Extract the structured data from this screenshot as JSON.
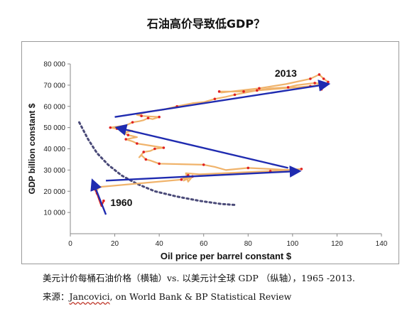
{
  "title": "石油高价导致低GDP？",
  "caption": "美元计价每桶石油价格（横轴）vs. 以美元计全球 GDP （纵轴），1965 -2013.",
  "source": {
    "prefix": "来源：",
    "name": "Jancovici",
    "rest": ", on World Bank & BP Statistical Review"
  },
  "chart_data": {
    "type": "line",
    "title": "",
    "xlabel": "Oil price per barrel constant $",
    "ylabel": "GDP billion constant $",
    "xlim": [
      0,
      140
    ],
    "ylim": [
      0,
      80000
    ],
    "xticks": [
      0,
      20,
      40,
      60,
      80,
      100,
      120,
      140
    ],
    "xtick_labels": [
      "0",
      "20",
      "40",
      "60",
      "80",
      "100",
      "120",
      "140"
    ],
    "yticks": [
      10000,
      20000,
      30000,
      40000,
      50000,
      60000,
      70000,
      80000
    ],
    "ytick_labels": [
      "10 000",
      "20 000",
      "30 000",
      "40 000",
      "50 000",
      "60 000",
      "70 000",
      "80 000"
    ],
    "grid": false,
    "series": [
      {
        "color": "#f0b36b",
        "marker_color": "#e02020",
        "points": [
          [
            15,
            15500
          ],
          [
            14,
            13000
          ],
          [
            13,
            16000
          ],
          [
            12,
            19000
          ],
          [
            11,
            21000
          ],
          [
            12,
            20500
          ],
          [
            13,
            22000
          ],
          [
            50,
            25500
          ],
          [
            53,
            27500
          ],
          [
            51,
            25000
          ],
          [
            55,
            27000
          ],
          [
            53,
            24500
          ],
          [
            52,
            28500
          ],
          [
            58,
            28000
          ],
          [
            90,
            29500
          ],
          [
            104,
            30500
          ],
          [
            99,
            30000
          ],
          [
            80,
            31000
          ],
          [
            70,
            30000
          ],
          [
            65,
            31500
          ],
          [
            60,
            32500
          ],
          [
            40,
            33000
          ],
          [
            36,
            34500
          ],
          [
            34,
            35000
          ],
          [
            32,
            37000
          ],
          [
            31,
            36000
          ],
          [
            33,
            38500
          ],
          [
            36,
            39000
          ],
          [
            38,
            40000
          ],
          [
            42,
            40500
          ],
          [
            36,
            41500
          ],
          [
            30,
            42500
          ],
          [
            28,
            43500
          ],
          [
            25,
            44500
          ],
          [
            30,
            45500
          ],
          [
            26,
            46500
          ],
          [
            24,
            47500
          ],
          [
            28,
            48500
          ],
          [
            21,
            49500
          ],
          [
            18,
            50000
          ],
          [
            25,
            51000
          ],
          [
            28,
            52500
          ],
          [
            31,
            53000
          ],
          [
            33,
            53500
          ],
          [
            35,
            54500
          ],
          [
            37,
            54000
          ],
          [
            40,
            55000
          ],
          [
            32,
            55500
          ],
          [
            30,
            56000
          ],
          [
            35,
            57500
          ],
          [
            42,
            58500
          ],
          [
            48,
            60000
          ],
          [
            55,
            61500
          ],
          [
            60,
            62000
          ],
          [
            65,
            63500
          ],
          [
            70,
            64500
          ],
          [
            74,
            65500
          ],
          [
            79,
            66500
          ],
          [
            84,
            67500
          ],
          [
            90,
            68500
          ],
          [
            98,
            69000
          ],
          [
            102,
            70000
          ],
          [
            110,
            71000
          ],
          [
            115,
            70500
          ],
          [
            108,
            69500
          ],
          [
            96,
            68500
          ],
          [
            90,
            68000
          ],
          [
            78,
            67000
          ],
          [
            67,
            67000
          ],
          [
            68,
            66500
          ],
          [
            85,
            68500
          ],
          [
            97,
            70500
          ],
          [
            108,
            73000
          ],
          [
            112,
            75000
          ],
          [
            114,
            73000
          ],
          [
            116,
            71500
          ],
          [
            113,
            68000
          ]
        ],
        "marked": [
          [
            15,
            15500
          ],
          [
            12,
            19000
          ],
          [
            11,
            21000
          ],
          [
            13,
            22000
          ],
          [
            50,
            25500
          ],
          [
            53,
            27500
          ],
          [
            55,
            27000
          ],
          [
            90,
            29500
          ],
          [
            104,
            30500
          ],
          [
            80,
            31000
          ],
          [
            60,
            32500
          ],
          [
            40,
            33000
          ],
          [
            34,
            35000
          ],
          [
            33,
            38500
          ],
          [
            38,
            40000
          ],
          [
            42,
            40500
          ],
          [
            30,
            42500
          ],
          [
            25,
            44500
          ],
          [
            26,
            46500
          ],
          [
            21,
            49500
          ],
          [
            18,
            50000
          ],
          [
            28,
            52500
          ],
          [
            35,
            54500
          ],
          [
            40,
            55000
          ],
          [
            32,
            55500
          ],
          [
            48,
            60000
          ],
          [
            65,
            63500
          ],
          [
            74,
            65500
          ],
          [
            84,
            67500
          ],
          [
            98,
            69000
          ],
          [
            110,
            71000
          ],
          [
            108,
            69500
          ],
          [
            78,
            67000
          ],
          [
            67,
            67000
          ],
          [
            85,
            68500
          ],
          [
            108,
            73000
          ],
          [
            112,
            75000
          ],
          [
            114,
            73000
          ],
          [
            116,
            71500
          ],
          [
            113,
            68000
          ]
        ],
        "early_red_segment": [
          [
            15,
            15500
          ],
          [
            14,
            13000
          ],
          [
            13,
            16000
          ],
          [
            12,
            19000
          ],
          [
            11,
            21000
          ]
        ]
      }
    ],
    "trend_arrows": {
      "color": "#1f2bb0",
      "segments": [
        [
          [
            16,
            9000
          ],
          [
            10,
            25000
          ]
        ],
        [
          [
            16,
            25000
          ],
          [
            103,
            29500
          ]
        ],
        [
          [
            98,
            31000
          ],
          [
            21,
            50000
          ]
        ],
        [
          [
            20,
            55000
          ],
          [
            116,
            70500
          ]
        ]
      ]
    },
    "dotted_curve": {
      "color": "#4a4a78",
      "points": [
        [
          4,
          52500
        ],
        [
          8,
          44500
        ],
        [
          12,
          38000
        ],
        [
          17,
          32500
        ],
        [
          23,
          27500
        ],
        [
          30,
          23500
        ],
        [
          38,
          20000
        ],
        [
          48,
          17500
        ],
        [
          58,
          15500
        ],
        [
          68,
          14000
        ],
        [
          75,
          13500
        ]
      ]
    },
    "annotations": [
      {
        "text": "1960",
        "x": 18,
        "y": 13000
      },
      {
        "text": "2013",
        "x": 92,
        "y": 74000
      }
    ]
  }
}
